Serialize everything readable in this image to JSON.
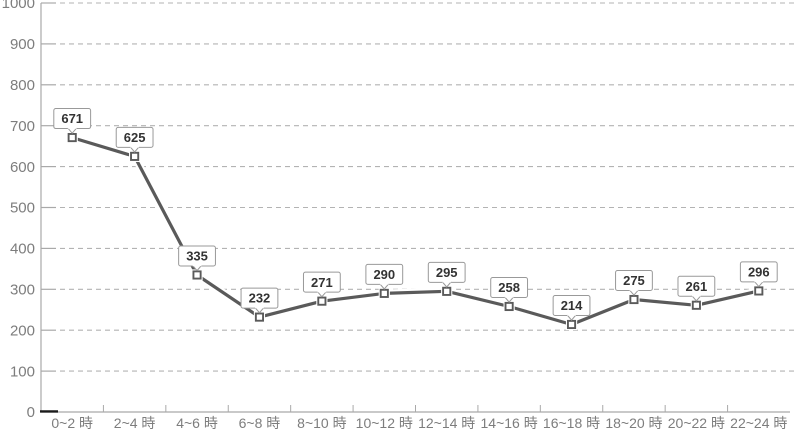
{
  "chart_data": {
    "type": "line",
    "title": "",
    "xlabel": "",
    "ylabel": "",
    "categories": [
      "0~2 時",
      "2~4 時",
      "4~6 時",
      "6~8 時",
      "8~10 時",
      "10~12 時",
      "12~14 時",
      "14~16 時",
      "16~18 時",
      "18~20 時",
      "20~22 時",
      "22~24 時"
    ],
    "values": [
      671,
      625,
      335,
      232,
      271,
      290,
      295,
      258,
      214,
      275,
      261,
      296
    ],
    "data_labels": [
      671,
      625,
      335,
      232,
      271,
      290,
      295,
      258,
      214,
      275,
      261,
      296
    ],
    "ylim": [
      0,
      1000
    ],
    "ytick_step": 100,
    "ytick_labels": [
      "0",
      "100",
      "200",
      "300",
      "400",
      "500",
      "600",
      "700",
      "800",
      "900",
      "1000"
    ],
    "grid": "horizontal-dashed",
    "legend": "none",
    "marker": "square-white",
    "colors": {
      "background": "#ffffff",
      "line": "#5a5a5a",
      "line_casing": "#ffffff",
      "marker_fill": "#ffffff",
      "marker_border": "#5a5a5a",
      "axis": "#a9a9a9",
      "gridline": "#b3b3b3",
      "tick_label_text": "#7d7d7d",
      "zero_tick": "#1a1a1a",
      "callout_fill": "#ffffff",
      "callout_border": "#999999",
      "callout_text": "#333333"
    }
  }
}
